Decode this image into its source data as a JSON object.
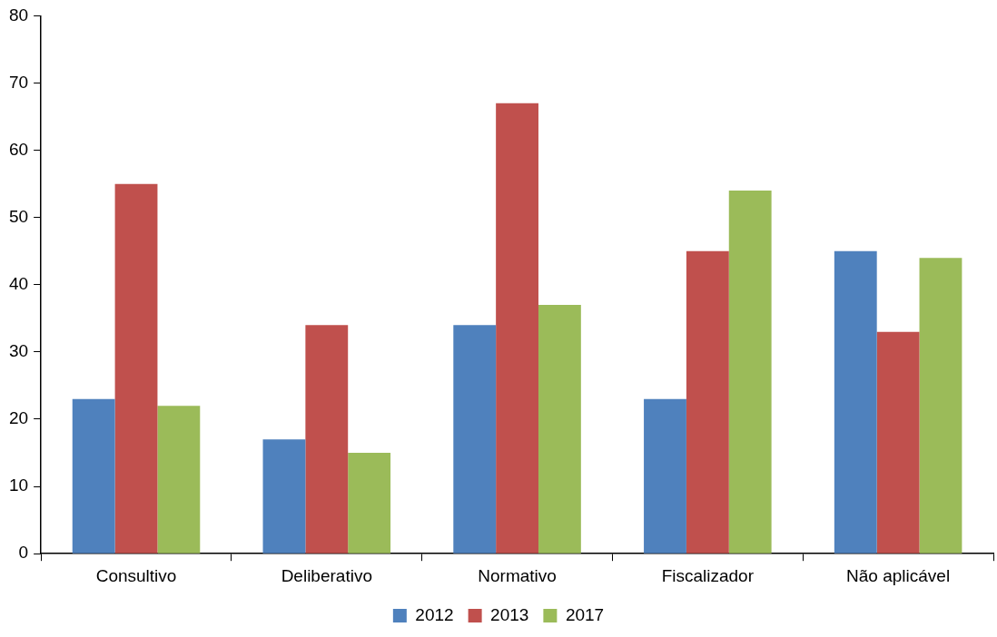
{
  "chart_data": {
    "type": "bar",
    "categories": [
      "Consultivo",
      "Deliberativo",
      "Normativo",
      "Fiscalizador",
      "Não aplicável"
    ],
    "series": [
      {
        "name": "2012",
        "color": "#4f81bd",
        "values": [
          23,
          17,
          34,
          23,
          45
        ]
      },
      {
        "name": "2013",
        "color": "#c0504d",
        "values": [
          55,
          34,
          67,
          45,
          33
        ]
      },
      {
        "name": "2017",
        "color": "#9bbb59",
        "values": [
          22,
          15,
          37,
          54,
          44
        ]
      }
    ],
    "ylim": [
      0,
      80
    ],
    "yticks": [
      0,
      10,
      20,
      30,
      40,
      50,
      60,
      70,
      80
    ],
    "legend": "bottom"
  }
}
